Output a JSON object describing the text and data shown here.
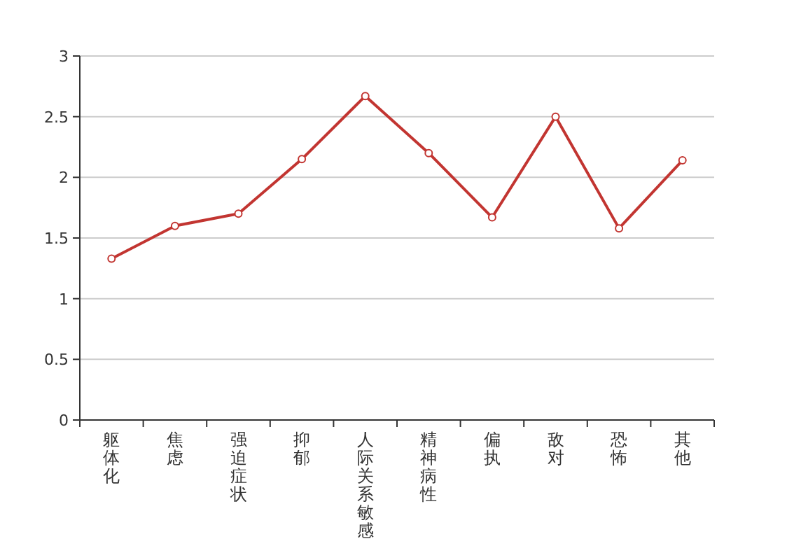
{
  "chart_data": {
    "type": "line",
    "categories": [
      "躯体化",
      "焦虑",
      "强迫症状",
      "抑郁",
      "人际关系敏感",
      "精神病性",
      "偏执",
      "敌对",
      "恐怖",
      "其他"
    ],
    "series": [
      {
        "color": "#c23531",
        "values": [
          1.33,
          1.6,
          1.7,
          2.15,
          2.67,
          2.2,
          1.67,
          2.5,
          1.58,
          2.14
        ]
      }
    ],
    "ylim": [
      0,
      3
    ],
    "yticks": [
      0,
      0.5,
      1,
      1.5,
      2,
      2.5,
      3
    ],
    "grid": "y",
    "marker": "circle",
    "line_style": "solid"
  }
}
